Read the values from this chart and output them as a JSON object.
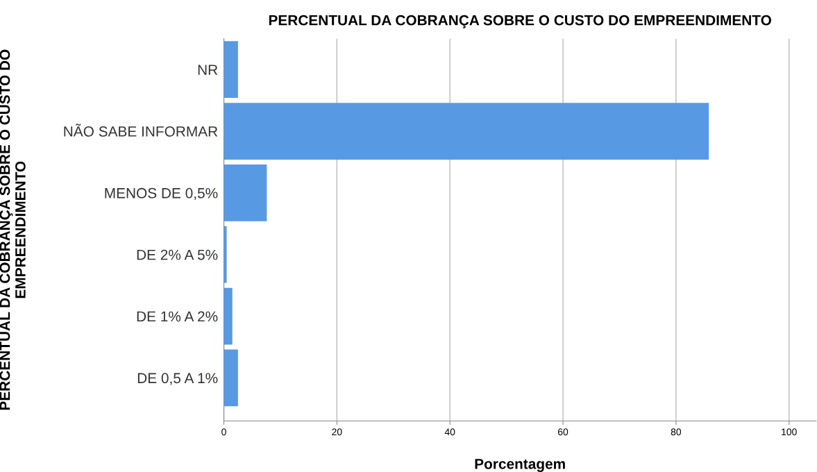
{
  "chart_data": {
    "type": "bar",
    "orientation": "horizontal",
    "title": "PERCENTUAL DA COBRANÇA SOBRE O CUSTO DO EMPREENDIMENTO",
    "xlabel": "Porcentagem",
    "ylabel": "PERCENTUAL DA COBRANÇA SOBRE O CUSTO DO EMPREENDIMENTO",
    "categories": [
      "NR",
      "NÃO SABE INFORMAR",
      "MENOS DE 0,5%",
      "DE 2% A 5%",
      "DE 1% A 2%",
      "DE 0,5 A 1%"
    ],
    "values": [
      2.5,
      85.8,
      7.6,
      0.5,
      1.5,
      2.5
    ],
    "color": "#5899e4",
    "xlim": [
      0,
      104.8
    ],
    "xticks": [
      0,
      20,
      40,
      60,
      80,
      100
    ],
    "grid": "x"
  }
}
